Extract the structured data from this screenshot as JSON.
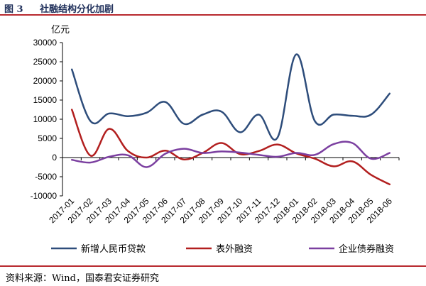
{
  "figure": {
    "label": "图 3",
    "title": "社融结构分化加剧",
    "source": "资料来源：Wind，国泰君安证券研究"
  },
  "chart_data": {
    "type": "line",
    "unit_label": "亿元",
    "ylim": [
      -10000,
      30000
    ],
    "y_ticks": [
      -10000,
      -5000,
      0,
      5000,
      10000,
      15000,
      20000,
      25000,
      30000
    ],
    "x": [
      "2017-01",
      "2017-02",
      "2017-03",
      "2017-04",
      "2017-05",
      "2017-06",
      "2017-07",
      "2017-08",
      "2017-09",
      "2017-10",
      "2017-11",
      "2017-12",
      "2018-01",
      "2018-02",
      "2018-03",
      "2018-04",
      "2018-05",
      "2018-06"
    ],
    "grid": false,
    "legend_position": "bottom",
    "series": [
      {
        "name": "新增人民币贷款",
        "color": "#2e4d7b",
        "values": [
          23000,
          9500,
          11500,
          10800,
          11700,
          14500,
          8800,
          11200,
          12000,
          6600,
          11200,
          5200,
          26900,
          9500,
          11200,
          10900,
          11200,
          16700
        ]
      },
      {
        "name": "表外融资",
        "color": "#b21f1f",
        "values": [
          12500,
          500,
          7500,
          1700,
          0,
          1800,
          -500,
          1200,
          3800,
          900,
          1700,
          3400,
          1100,
          -300,
          -2300,
          -1000,
          -4500,
          -7000
        ]
      },
      {
        "name": "企业债券融资",
        "color": "#7b3fa0",
        "values": [
          -600,
          -1300,
          200,
          600,
          -2500,
          1000,
          2300,
          1200,
          1600,
          1300,
          700,
          200,
          1200,
          700,
          3500,
          3800,
          -300,
          1200
        ]
      }
    ]
  }
}
